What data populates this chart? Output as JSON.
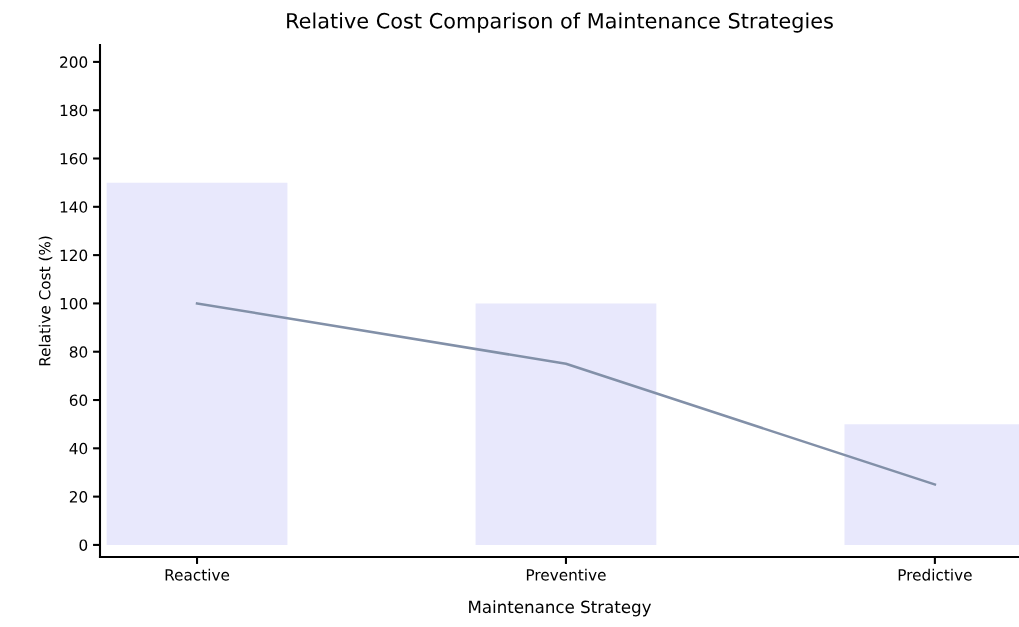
{
  "chart_data": {
    "type": "bar",
    "title": "Relative Cost Comparison of Maintenance Strategies",
    "xlabel": "Maintenance Strategy",
    "ylabel": "Relative Cost (%)",
    "categories": [
      "Reactive",
      "Preventive",
      "Predictive"
    ],
    "series": [
      {
        "color": "#e8e8fc",
        "values": [
          150,
          100,
          50
        ]
      },
      {
        "type": "line",
        "color": "#8290a8",
        "values": [
          100,
          75,
          25
        ]
      }
    ],
    "ylim": [
      -5,
      207
    ],
    "yticks": [
      0,
      20,
      40,
      60,
      80,
      100,
      120,
      140,
      160,
      180,
      200
    ],
    "grid": false,
    "legend": false
  }
}
